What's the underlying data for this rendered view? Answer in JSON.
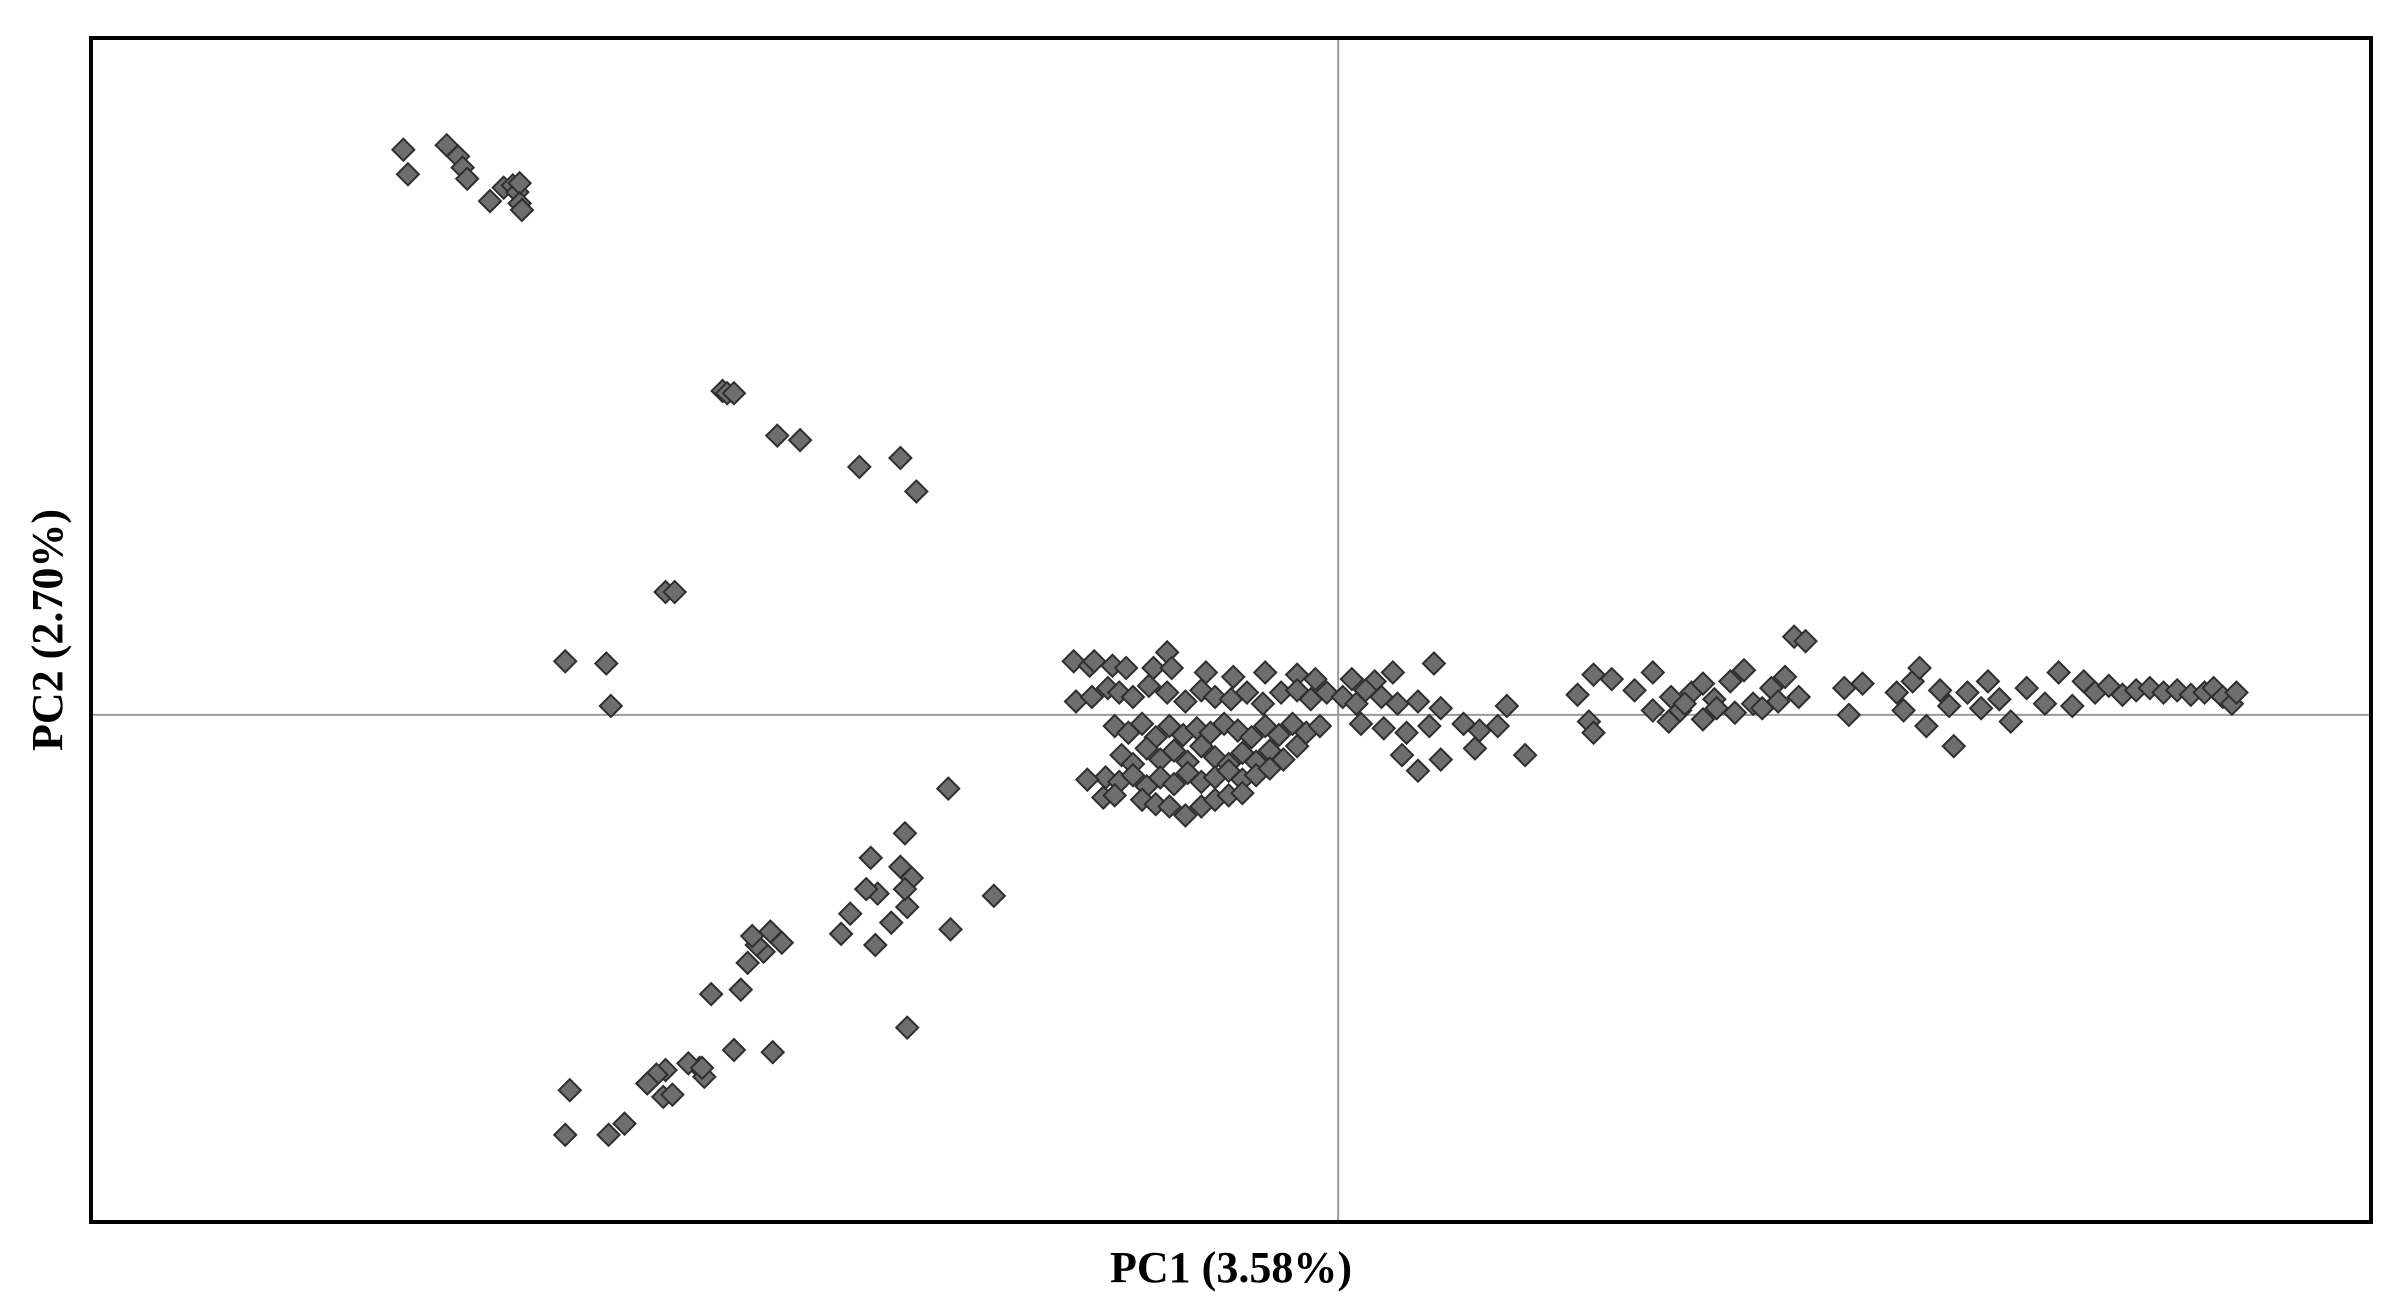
{
  "chart_data": {
    "type": "scatter",
    "title": "",
    "xlabel": "PC1 (3.58%)",
    "ylabel": "PC2 (2.70%)",
    "xlim": [
      -5.47,
      4.53
    ],
    "ylim": [
      -2.27,
      3.03
    ],
    "grid": false,
    "reference_lines": {
      "x": 0,
      "y": 0
    },
    "marker": "diamond",
    "marker_color": "#6e6e6e",
    "series": [
      {
        "points": [
          [
            -4.1,
            2.53
          ],
          [
            -4.08,
            2.42
          ],
          [
            -3.91,
            2.55
          ],
          [
            -3.86,
            2.5
          ],
          [
            -3.84,
            2.45
          ],
          [
            -3.82,
            2.4
          ],
          [
            -3.72,
            2.3
          ],
          [
            -3.66,
            2.36
          ],
          [
            -3.62,
            2.37
          ],
          [
            -3.6,
            2.34
          ],
          [
            -3.59,
            2.38
          ],
          [
            -3.59,
            2.29
          ],
          [
            -3.58,
            2.26
          ],
          [
            -2.7,
            1.45
          ],
          [
            -2.68,
            1.44
          ],
          [
            -2.65,
            1.44
          ],
          [
            -2.46,
            1.25
          ],
          [
            -2.36,
            1.23
          ],
          [
            -2.1,
            1.11
          ],
          [
            -1.92,
            1.15
          ],
          [
            -1.85,
            1.0
          ],
          [
            -2.95,
            0.55
          ],
          [
            -2.91,
            0.55
          ],
          [
            -3.21,
            0.23
          ],
          [
            -3.19,
            0.04
          ],
          [
            -3.39,
            0.24
          ],
          [
            -1.71,
            -0.33
          ],
          [
            -1.9,
            -0.53
          ],
          [
            -2.05,
            -0.64
          ],
          [
            -1.92,
            -0.68
          ],
          [
            -1.87,
            -0.73
          ],
          [
            -1.89,
            -0.86
          ],
          [
            -1.9,
            -0.78
          ],
          [
            -1.96,
            -0.93
          ],
          [
            -1.51,
            -0.81
          ],
          [
            -1.7,
            -0.96
          ],
          [
            -2.02,
            -0.8
          ],
          [
            -2.07,
            -0.78
          ],
          [
            -2.14,
            -0.89
          ],
          [
            -2.18,
            -0.98
          ],
          [
            -2.03,
            -1.03
          ],
          [
            -1.89,
            -1.4
          ],
          [
            -2.49,
            -0.97
          ],
          [
            -2.52,
            -1.06
          ],
          [
            -2.55,
            -1.03
          ],
          [
            -2.57,
            -0.99
          ],
          [
            -2.44,
            -1.02
          ],
          [
            -2.59,
            -1.11
          ],
          [
            -2.62,
            -1.23
          ],
          [
            -2.75,
            -1.25
          ],
          [
            -2.48,
            -1.51
          ],
          [
            -2.65,
            -1.5
          ],
          [
            -2.8,
            -1.58
          ],
          [
            -2.85,
            -1.56
          ],
          [
            -2.95,
            -1.59
          ],
          [
            -2.99,
            -1.61
          ],
          [
            -3.03,
            -1.65
          ],
          [
            -2.96,
            -1.71
          ],
          [
            -2.92,
            -1.7
          ],
          [
            -2.78,
            -1.62
          ],
          [
            -2.79,
            -1.58
          ],
          [
            -3.37,
            -1.68
          ],
          [
            -3.39,
            -1.88
          ],
          [
            -3.2,
            -1.88
          ],
          [
            -3.13,
            -1.83
          ],
          [
            -1.16,
            0.24
          ],
          [
            -1.09,
            0.22
          ],
          [
            -1.07,
            0.24
          ],
          [
            -0.99,
            0.22
          ],
          [
            -0.93,
            0.21
          ],
          [
            -0.81,
            0.21
          ],
          [
            -0.75,
            0.28
          ],
          [
            -0.73,
            0.21
          ],
          [
            -0.58,
            0.19
          ],
          [
            -0.46,
            0.17
          ],
          [
            -0.32,
            0.19
          ],
          [
            -0.18,
            0.18
          ],
          [
            -0.1,
            0.16
          ],
          [
            0.06,
            0.16
          ],
          [
            0.16,
            0.15
          ],
          [
            0.24,
            0.19
          ],
          [
            0.42,
            0.23
          ],
          [
            -1.15,
            0.06
          ],
          [
            -1.08,
            0.08
          ],
          [
            -1.01,
            0.12
          ],
          [
            -0.96,
            0.1
          ],
          [
            -0.9,
            0.08
          ],
          [
            -0.83,
            0.13
          ],
          [
            -0.75,
            0.1
          ],
          [
            -0.67,
            0.06
          ],
          [
            -0.6,
            0.11
          ],
          [
            -0.54,
            0.08
          ],
          [
            -0.47,
            0.07
          ],
          [
            -0.4,
            0.1
          ],
          [
            -0.33,
            0.05
          ],
          [
            -0.25,
            0.1
          ],
          [
            -0.18,
            0.11
          ],
          [
            -0.12,
            0.07
          ],
          [
            -0.05,
            0.1
          ],
          [
            0.02,
            0.08
          ],
          [
            0.08,
            0.05
          ],
          [
            0.12,
            0.11
          ],
          [
            0.19,
            0.08
          ],
          [
            0.26,
            0.05
          ],
          [
            0.35,
            0.06
          ],
          [
            0.45,
            0.03
          ],
          [
            -0.98,
            -0.05
          ],
          [
            -0.92,
            -0.08
          ],
          [
            -0.86,
            -0.04
          ],
          [
            -0.8,
            -0.1
          ],
          [
            -0.74,
            -0.05
          ],
          [
            -0.68,
            -0.09
          ],
          [
            -0.62,
            -0.06
          ],
          [
            -0.56,
            -0.08
          ],
          [
            -0.5,
            -0.04
          ],
          [
            -0.44,
            -0.07
          ],
          [
            -0.38,
            -0.1
          ],
          [
            -0.32,
            -0.05
          ],
          [
            -0.26,
            -0.09
          ],
          [
            -0.2,
            -0.04
          ],
          [
            -0.14,
            -0.08
          ],
          [
            -0.08,
            -0.05
          ],
          [
            0.1,
            -0.04
          ],
          [
            0.2,
            -0.06
          ],
          [
            0.3,
            -0.08
          ],
          [
            0.4,
            -0.05
          ],
          [
            0.55,
            -0.04
          ],
          [
            0.62,
            -0.07
          ],
          [
            0.7,
            -0.05
          ],
          [
            0.74,
            0.04
          ],
          [
            -0.95,
            -0.18
          ],
          [
            -0.9,
            -0.22
          ],
          [
            -0.84,
            -0.15
          ],
          [
            -0.78,
            -0.2
          ],
          [
            -0.72,
            -0.16
          ],
          [
            -0.66,
            -0.21
          ],
          [
            -0.6,
            -0.14
          ],
          [
            -0.54,
            -0.19
          ],
          [
            -0.48,
            -0.22
          ],
          [
            -0.42,
            -0.17
          ],
          [
            -0.36,
            -0.21
          ],
          [
            -0.3,
            -0.16
          ],
          [
            -0.24,
            -0.2
          ],
          [
            -0.18,
            -0.14
          ],
          [
            0.28,
            -0.18
          ],
          [
            0.35,
            -0.25
          ],
          [
            0.45,
            -0.2
          ],
          [
            0.6,
            -0.15
          ],
          [
            0.82,
            -0.18
          ],
          [
            -1.02,
            -0.28
          ],
          [
            -0.96,
            -0.3
          ],
          [
            -0.9,
            -0.27
          ],
          [
            -0.84,
            -0.32
          ],
          [
            -0.78,
            -0.28
          ],
          [
            -0.72,
            -0.31
          ],
          [
            -0.66,
            -0.26
          ],
          [
            -0.6,
            -0.3
          ],
          [
            -0.54,
            -0.28
          ],
          [
            -0.48,
            -0.25
          ],
          [
            -0.42,
            -0.29
          ],
          [
            -0.36,
            -0.27
          ],
          [
            -0.3,
            -0.24
          ],
          [
            -1.1,
            -0.29
          ],
          [
            -1.03,
            -0.37
          ],
          [
            -0.98,
            -0.36
          ],
          [
            -0.86,
            -0.38
          ],
          [
            -0.8,
            -0.4
          ],
          [
            -0.74,
            -0.41
          ],
          [
            -0.67,
            -0.45
          ],
          [
            -0.6,
            -0.41
          ],
          [
            -0.54,
            -0.38
          ],
          [
            -0.48,
            -0.36
          ],
          [
            -0.42,
            -0.35
          ],
          [
            1.12,
            0.18
          ],
          [
            1.2,
            0.16
          ],
          [
            1.3,
            0.11
          ],
          [
            1.38,
            0.19
          ],
          [
            1.46,
            0.08
          ],
          [
            1.5,
            0.02
          ],
          [
            1.55,
            0.1
          ],
          [
            1.6,
            0.14
          ],
          [
            1.65,
            0.07
          ],
          [
            1.72,
            0.15
          ],
          [
            1.78,
            0.2
          ],
          [
            1.82,
            0.05
          ],
          [
            1.9,
            0.12
          ],
          [
            1.96,
            0.17
          ],
          [
            2.02,
            0.08
          ],
          [
            2.0,
            0.35
          ],
          [
            2.05,
            0.33
          ],
          [
            1.05,
            0.09
          ],
          [
            1.1,
            -0.03
          ],
          [
            1.12,
            -0.08
          ],
          [
            1.38,
            0.02
          ],
          [
            1.45,
            -0.03
          ],
          [
            1.52,
            0.05
          ],
          [
            1.6,
            -0.02
          ],
          [
            1.66,
            0.03
          ],
          [
            1.74,
            0.01
          ],
          [
            1.86,
            0.03
          ],
          [
            1.93,
            0.06
          ],
          [
            2.22,
            0.12
          ],
          [
            2.24,
            0.0
          ],
          [
            2.3,
            0.14
          ],
          [
            2.45,
            0.1
          ],
          [
            2.48,
            0.02
          ],
          [
            2.52,
            0.15
          ],
          [
            2.55,
            0.21
          ],
          [
            2.58,
            -0.05
          ],
          [
            2.64,
            0.11
          ],
          [
            2.68,
            0.04
          ],
          [
            2.7,
            -0.14
          ],
          [
            2.76,
            0.1
          ],
          [
            2.82,
            0.03
          ],
          [
            2.85,
            0.15
          ],
          [
            2.9,
            0.07
          ],
          [
            2.95,
            -0.03
          ],
          [
            3.02,
            0.12
          ],
          [
            3.1,
            0.05
          ],
          [
            3.16,
            0.19
          ],
          [
            3.22,
            0.04
          ],
          [
            3.27,
            0.15
          ],
          [
            3.32,
            0.1
          ],
          [
            3.38,
            0.13
          ],
          [
            3.44,
            0.09
          ],
          [
            3.5,
            0.11
          ],
          [
            3.56,
            0.12
          ],
          [
            3.62,
            0.1
          ],
          [
            3.68,
            0.11
          ],
          [
            3.74,
            0.09
          ],
          [
            3.8,
            0.1
          ],
          [
            3.84,
            0.12
          ],
          [
            3.88,
            0.08
          ],
          [
            3.92,
            0.05
          ],
          [
            3.94,
            0.1
          ]
        ]
      }
    ]
  }
}
